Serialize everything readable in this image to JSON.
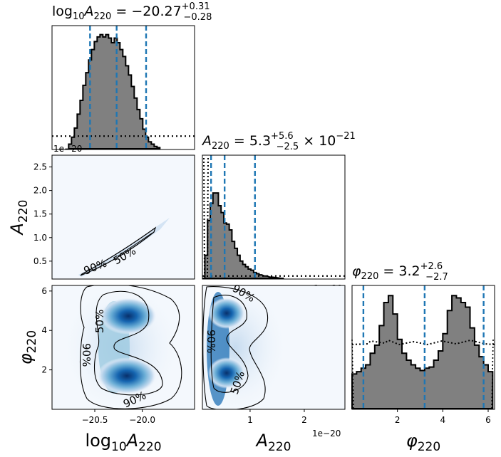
{
  "chart_data": [
    {
      "type": "histogram",
      "panel": "log10A220-marginal",
      "title": "log10 A220 = −20.27 +0.31 −0.28",
      "title_parts": {
        "base": "log",
        "sub": "10",
        "var": "A",
        "varsub": "220",
        "eq": " = −20.27",
        "sup": "+0.31",
        "subr": "−0.28"
      },
      "xlim": [
        -20.95,
        -19.45
      ],
      "quantile_lines": [
        -20.55,
        -20.27,
        -19.96
      ],
      "posterior_bins": [
        [
          -20.76,
          0.04
        ],
        [
          -20.73,
          0.1
        ],
        [
          -20.7,
          0.18
        ],
        [
          -20.67,
          0.3
        ],
        [
          -20.64,
          0.42
        ],
        [
          -20.61,
          0.55
        ],
        [
          -20.58,
          0.66
        ],
        [
          -20.55,
          0.77
        ],
        [
          -20.52,
          0.86
        ],
        [
          -20.49,
          0.93
        ],
        [
          -20.46,
          0.97
        ],
        [
          -20.43,
          0.99
        ],
        [
          -20.4,
          0.97
        ],
        [
          -20.37,
          0.99
        ],
        [
          -20.34,
          0.96
        ],
        [
          -20.31,
          0.92
        ],
        [
          -20.28,
          0.96
        ],
        [
          -20.25,
          0.92
        ],
        [
          -20.22,
          0.86
        ],
        [
          -20.19,
          0.8
        ],
        [
          -20.16,
          0.72
        ],
        [
          -20.13,
          0.64
        ],
        [
          -20.1,
          0.54
        ],
        [
          -20.07,
          0.44
        ],
        [
          -20.04,
          0.34
        ],
        [
          -20.01,
          0.26
        ],
        [
          -19.98,
          0.17
        ],
        [
          -19.95,
          0.1
        ],
        [
          -19.92,
          0.06
        ],
        [
          -19.89,
          0.04
        ],
        [
          -19.86,
          0.02
        ],
        [
          -19.83,
          0.01
        ]
      ],
      "prior_level": 0.11,
      "offset_text": "1e−20"
    },
    {
      "type": "histogram",
      "panel": "A220-marginal",
      "title": "A220 = 5.3 +5.6 −2.5 × 10^−21",
      "title_parts": {
        "var": "A",
        "varsub": "220",
        "eq": " = 5.3",
        "sup": "+5.6",
        "subr": "−2.5",
        "tail": " × 10",
        "exp": "−21"
      },
      "x_unit": "1e-20",
      "xlim": [
        0.12,
        2.75
      ],
      "quantile_lines": [
        0.28,
        0.53,
        1.09
      ],
      "posterior_bins": [
        [
          0.14,
          0.0
        ],
        [
          0.19,
          0.2
        ],
        [
          0.24,
          0.5
        ],
        [
          0.29,
          0.65
        ],
        [
          0.34,
          0.74
        ],
        [
          0.39,
          0.74
        ],
        [
          0.44,
          0.63
        ],
        [
          0.49,
          0.57
        ],
        [
          0.54,
          0.48
        ],
        [
          0.59,
          0.47
        ],
        [
          0.64,
          0.42
        ],
        [
          0.69,
          0.32
        ],
        [
          0.74,
          0.26
        ],
        [
          0.79,
          0.2
        ],
        [
          0.84,
          0.15
        ],
        [
          0.89,
          0.12
        ],
        [
          0.94,
          0.1
        ],
        [
          0.99,
          0.08
        ],
        [
          1.04,
          0.07
        ],
        [
          1.09,
          0.05
        ],
        [
          1.14,
          0.04
        ],
        [
          1.19,
          0.03
        ],
        [
          1.29,
          0.02
        ],
        [
          1.39,
          0.01
        ],
        [
          1.6,
          0.0
        ]
      ],
      "prior_level": 0.02,
      "offset_text": "1e−20"
    },
    {
      "type": "histogram",
      "panel": "phi220-marginal",
      "title": "φ220 = 3.2 +2.6 −2.7",
      "title_parts": {
        "var": "φ",
        "varsub": "220",
        "eq": " = 3.2",
        "sup": "+2.6",
        "subr": "−2.7"
      },
      "xlim": [
        0.0,
        6.283
      ],
      "xticks": [
        2,
        4,
        6
      ],
      "xlabel": "φ220",
      "quantile_lines": [
        0.5,
        3.2,
        5.8
      ],
      "posterior_bins": [
        [
          0.1,
          0.3
        ],
        [
          0.3,
          0.32
        ],
        [
          0.5,
          0.35
        ],
        [
          0.7,
          0.38
        ],
        [
          0.9,
          0.48
        ],
        [
          1.1,
          0.55
        ],
        [
          1.3,
          0.72
        ],
        [
          1.5,
          0.92
        ],
        [
          1.7,
          0.98
        ],
        [
          1.9,
          0.82
        ],
        [
          2.1,
          0.6
        ],
        [
          2.3,
          0.48
        ],
        [
          2.5,
          0.42
        ],
        [
          2.7,
          0.38
        ],
        [
          2.9,
          0.35
        ],
        [
          3.1,
          0.33
        ],
        [
          3.3,
          0.35
        ],
        [
          3.5,
          0.36
        ],
        [
          3.7,
          0.42
        ],
        [
          3.9,
          0.5
        ],
        [
          4.1,
          0.65
        ],
        [
          4.3,
          0.85
        ],
        [
          4.5,
          0.98
        ],
        [
          4.7,
          0.96
        ],
        [
          4.9,
          0.92
        ],
        [
          5.1,
          0.88
        ],
        [
          5.3,
          0.7
        ],
        [
          5.5,
          0.55
        ],
        [
          5.7,
          0.45
        ],
        [
          5.9,
          0.38
        ],
        [
          6.1,
          0.32
        ]
      ],
      "prior_level": 0.55
    },
    {
      "type": "contour",
      "panel": "A220-vs-log10A220",
      "ylabel": "A220",
      "ylim": [
        0.12,
        2.75
      ],
      "yticks": [
        0.5,
        1.0,
        1.5,
        2.0,
        2.5
      ],
      "ytick_labels": [
        "0.5",
        "1.0",
        "1.5",
        "2.0",
        "2.5"
      ],
      "contour_labels": [
        "90%",
        "50%"
      ]
    },
    {
      "type": "contour",
      "panel": "phi220-vs-log10A220",
      "xlabel": "log10A220",
      "ylabel": "φ220",
      "xticks": [
        -20.5,
        -20.0
      ],
      "xtick_labels": [
        "−20.5",
        "−20.0"
      ],
      "yticks": [
        2,
        4,
        6
      ],
      "contour_labels": [
        "50%",
        "90%",
        "90%"
      ]
    },
    {
      "type": "contour",
      "panel": "phi220-vs-A220",
      "xlabel": "A220",
      "xticks": [
        1,
        2
      ],
      "offset_text": "1e−20",
      "contour_labels": [
        "90%",
        "90%",
        "50%"
      ]
    }
  ],
  "colors": {
    "hist_fill": "#808080",
    "quantile_line": "#1f77b4",
    "density_dark": "#08306b",
    "density_light": "#f4f8fd"
  }
}
